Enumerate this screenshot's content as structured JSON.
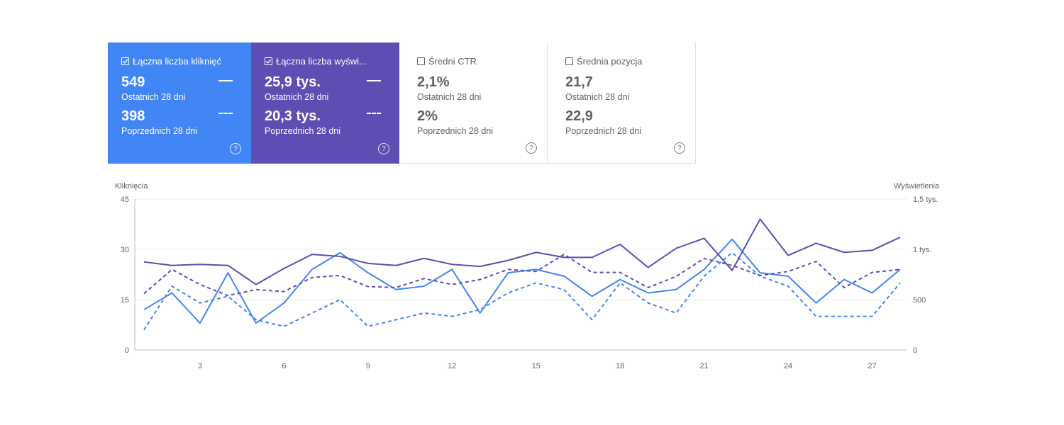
{
  "cards": [
    {
      "label": "Łączna liczba kliknięć",
      "checked": true,
      "current_value": "549",
      "current_label": "Ostatnich 28 dni",
      "previous_value": "398",
      "previous_label": "Poprzednich 28 dni",
      "help": "?"
    },
    {
      "label": "Łączna liczba wyświ...",
      "checked": true,
      "current_value": "25,9 tys.",
      "current_label": "Ostatnich 28 dni",
      "previous_value": "20,3 tys.",
      "previous_label": "Poprzednich 28 dni",
      "help": "?"
    },
    {
      "label": "Średni CTR",
      "checked": false,
      "current_value": "2,1%",
      "current_label": "Ostatnich 28 dni",
      "previous_value": "2%",
      "previous_label": "Poprzednich 28 dni",
      "help": "?"
    },
    {
      "label": "Średnia pozycja",
      "checked": false,
      "current_value": "21,7",
      "current_label": "Ostatnich 28 dni",
      "previous_value": "22,9",
      "previous_label": "Poprzednich 28 dni",
      "help": "?"
    }
  ],
  "chart_data": {
    "type": "line",
    "left_axis_title": "Kliknięcia",
    "right_axis_title": "Wyświetlenia",
    "left_ticks": [
      "0",
      "15",
      "30",
      "45"
    ],
    "left_ylim": [
      0,
      45
    ],
    "right_ticks": [
      "0",
      "500",
      "1 tys.",
      "1,5 tys."
    ],
    "right_ylim": [
      0,
      1500
    ],
    "x_ticks": [
      "3",
      "6",
      "9",
      "12",
      "15",
      "18",
      "21",
      "24",
      "27"
    ],
    "x": [
      1,
      2,
      3,
      4,
      5,
      6,
      7,
      8,
      9,
      10,
      11,
      12,
      13,
      14,
      15,
      16,
      17,
      18,
      19,
      20,
      21,
      22,
      23,
      24,
      25,
      26,
      27,
      28
    ],
    "series": [
      {
        "axis": "left",
        "color": "#4285f4",
        "style": "solid",
        "values": [
          12,
          17,
          8,
          23,
          8,
          14,
          24,
          29,
          23,
          18,
          19,
          24,
          11,
          23,
          24,
          22,
          16,
          21,
          17,
          18,
          24,
          33,
          23,
          22,
          14,
          21,
          17,
          24
        ]
      },
      {
        "axis": "left",
        "color": "#4285f4",
        "style": "dashed",
        "values": [
          6,
          19,
          14,
          16,
          9,
          7,
          11,
          15,
          7,
          9,
          11,
          10,
          12,
          17,
          20,
          18,
          9,
          20,
          14,
          11,
          22,
          29,
          22,
          19,
          10,
          10,
          10,
          20
        ]
      },
      {
        "axis": "right",
        "color": "#5e4db2",
        "style": "solid",
        "values": [
          875,
          840,
          850,
          840,
          650,
          810,
          950,
          930,
          860,
          840,
          910,
          850,
          830,
          890,
          970,
          920,
          920,
          1050,
          820,
          1010,
          1110,
          790,
          1300,
          940,
          1060,
          970,
          990,
          1120
        ]
      },
      {
        "axis": "right",
        "color": "#5e4db2",
        "style": "dashed",
        "values": [
          560,
          800,
          650,
          540,
          600,
          580,
          720,
          740,
          630,
          620,
          710,
          650,
          700,
          800,
          780,
          950,
          770,
          770,
          620,
          730,
          910,
          840,
          740,
          780,
          880,
          620,
          770,
          800
        ]
      }
    ]
  }
}
